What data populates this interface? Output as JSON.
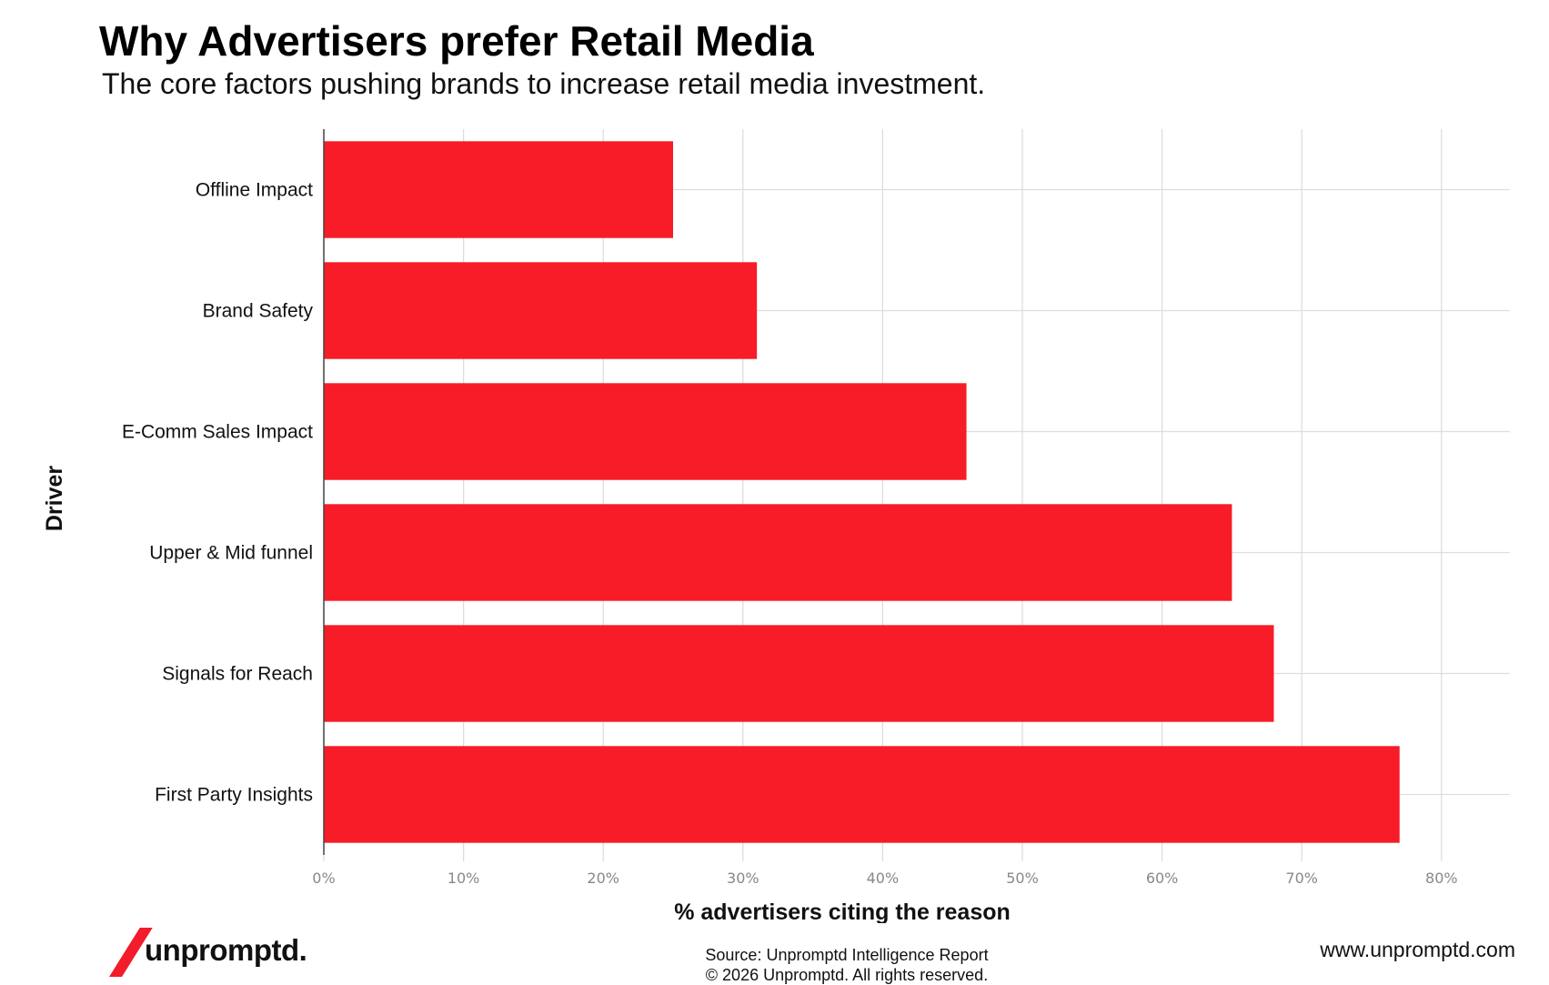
{
  "header": {
    "title": "Why Advertisers prefer Retail Media",
    "subtitle": "The core factors pushing brands to increase retail media investment."
  },
  "chart_data": {
    "type": "bar",
    "orientation": "horizontal",
    "title": "Why Advertisers prefer Retail Media",
    "subtitle": "The core factors pushing brands to increase retail media investment.",
    "xlabel": "% advertisers citing the reason",
    "ylabel": "Driver",
    "categories": [
      "Offline Impact",
      "Brand Safety",
      "E-Comm Sales Impact",
      "Upper & Mid funnel",
      "Signals for Reach",
      "First Party Insights"
    ],
    "values": [
      25,
      31,
      46,
      65,
      68,
      77
    ],
    "xlim": [
      0,
      85
    ],
    "xticks": [
      0,
      10,
      20,
      30,
      40,
      50,
      60,
      70,
      80
    ],
    "xtick_labels": [
      "0%",
      "10%",
      "20%",
      "30%",
      "40%",
      "50%",
      "60%",
      "70%",
      "80%"
    ],
    "grid": true,
    "legend": "none",
    "bar_color": "#f71c27"
  },
  "footer": {
    "brand": "unpromptd.",
    "source": "Source: Unpromptd Intelligence Report",
    "copyright": "© 2026 Unpromptd. All rights reserved.",
    "website": "www.unpromptd.com"
  },
  "colors": {
    "accent": "#f71c27",
    "grid": "#dddddd",
    "axis": "#444444",
    "tick_text": "#888888"
  }
}
